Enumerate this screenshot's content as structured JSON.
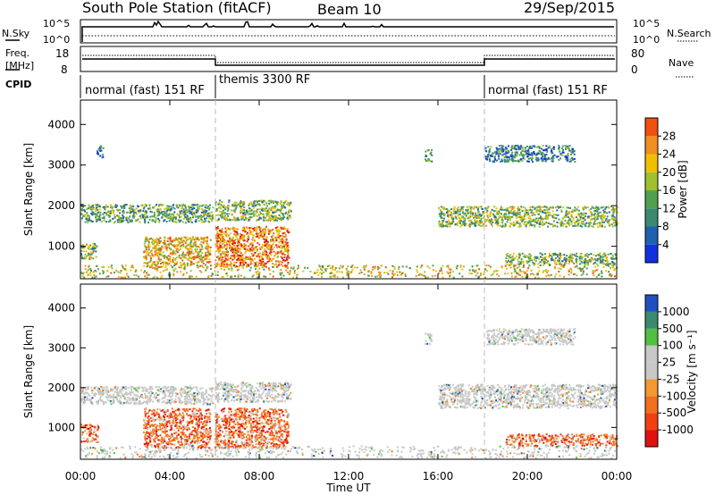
{
  "header": {
    "station": "South Pole Station (fitACF)",
    "beam": "Beam 10",
    "date": "29/Sep/2015"
  },
  "top_panel": {
    "left_label_nsky": "N.Sky",
    "left_exp_top": "10^5",
    "left_exp_bottom": "10^0",
    "right_exp_top": "10^5",
    "right_exp_bottom": "10^0",
    "right_label_nsearch": "N.Search",
    "freq_label_line1": "Freq.",
    "freq_label_line2": "[MHz]",
    "freq_ticks": [
      "18",
      "8"
    ],
    "nave_ticks": [
      "80",
      "0"
    ],
    "nave_label": "Nave",
    "cpid_label": "CPID",
    "cpid_modes": [
      {
        "label": "normal (fast) 151 RF",
        "start_h": 0,
        "end_h": 6
      },
      {
        "label": "themis 3300 RF",
        "start_h": 6,
        "end_h": 18
      },
      {
        "label": "normal (fast) 151 RF",
        "start_h": 18,
        "end_h": 24
      }
    ]
  },
  "colors": {
    "power_scale": [
      "#1030e0",
      "#2060b0",
      "#3a8a70",
      "#50a050",
      "#a0c030",
      "#f0c000",
      "#f09020",
      "#f05010",
      "#e01010"
    ],
    "velocity_scale": [
      "#e01010",
      "#f04010",
      "#f07020",
      "#f09a30",
      "#c8c8c8",
      "#c8c8c8",
      "#50c040",
      "#3a8a70",
      "#2050c0"
    ]
  },
  "chart_data": [
    {
      "type": "heatmap",
      "name": "power",
      "ylabel": "Slant Range [km]",
      "y_ticks": [
        1000,
        2000,
        3000,
        4000
      ],
      "ylim": [
        200,
        4600
      ],
      "colorbar_label": "Power [dB]",
      "colorbar_ticks": [
        "4",
        "8",
        "12",
        "16",
        "20",
        "24",
        "28"
      ],
      "colorbar_range": [
        0,
        32
      ],
      "regions": [
        {
          "t0": 0.0,
          "t1": 5.9,
          "r0": 1600,
          "r1": 2050,
          "v": 12
        },
        {
          "t0": 6.0,
          "t1": 9.4,
          "r0": 1650,
          "r1": 2150,
          "v": 14
        },
        {
          "t0": 0.0,
          "t1": 0.7,
          "r0": 700,
          "r1": 1100,
          "v": 14
        },
        {
          "t0": 2.8,
          "t1": 5.8,
          "r0": 500,
          "r1": 1250,
          "v": 20
        },
        {
          "t0": 6.0,
          "t1": 9.3,
          "r0": 500,
          "r1": 1500,
          "v": 24
        },
        {
          "t0": 0.7,
          "t1": 1.0,
          "r0": 3200,
          "r1": 3500,
          "v": 6
        },
        {
          "t0": 15.4,
          "t1": 15.7,
          "r0": 3100,
          "r1": 3400,
          "v": 12
        },
        {
          "t0": 16.0,
          "t1": 24.0,
          "r0": 1500,
          "r1": 2000,
          "v": 14
        },
        {
          "t0": 18.1,
          "t1": 22.1,
          "r0": 3100,
          "r1": 3500,
          "v": 8
        },
        {
          "t0": 19.0,
          "t1": 24.0,
          "r0": 550,
          "r1": 850,
          "v": 14
        },
        {
          "t0": 0.0,
          "t1": 24.0,
          "r0": 250,
          "r1": 550,
          "v": 18
        }
      ]
    },
    {
      "type": "heatmap",
      "name": "velocity",
      "ylabel": "Slant Range [km]",
      "xlabel": "Time UT",
      "x_ticks": [
        "00:00",
        "04:00",
        "08:00",
        "12:00",
        "16:00",
        "20:00",
        "00:00"
      ],
      "y_ticks": [
        1000,
        2000,
        3000,
        4000
      ],
      "ylim": [
        200,
        4600
      ],
      "colorbar_label": "Velocity [m s⁻¹]",
      "colorbar_ticks": [
        "-1000",
        "-500",
        "-100",
        "-25",
        "25",
        "100",
        "500",
        "1000"
      ],
      "regions": [
        {
          "t0": 0.0,
          "t1": 5.9,
          "r0": 1600,
          "r1": 2050,
          "v": 0
        },
        {
          "t0": 6.0,
          "t1": 9.4,
          "r0": 1650,
          "r1": 2150,
          "v": 0
        },
        {
          "t0": 0.0,
          "t1": 0.8,
          "r0": 650,
          "r1": 1100,
          "v": -300
        },
        {
          "t0": 2.8,
          "t1": 5.8,
          "r0": 500,
          "r1": 1500,
          "v": -300
        },
        {
          "t0": 6.0,
          "t1": 9.3,
          "r0": 500,
          "r1": 1500,
          "v": -300
        },
        {
          "t0": 15.4,
          "t1": 15.7,
          "r0": 3100,
          "r1": 3400,
          "v": 0
        },
        {
          "t0": 16.0,
          "t1": 24.0,
          "r0": 1500,
          "r1": 2100,
          "v": 0
        },
        {
          "t0": 18.1,
          "t1": 22.1,
          "r0": 3100,
          "r1": 3500,
          "v": 0
        },
        {
          "t0": 19.0,
          "t1": 24.0,
          "r0": 550,
          "r1": 850,
          "v": -300
        },
        {
          "t0": 0.0,
          "t1": 24.0,
          "r0": 250,
          "r1": 550,
          "v": 0
        }
      ]
    }
  ]
}
